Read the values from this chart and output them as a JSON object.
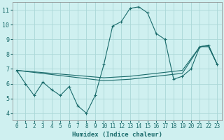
{
  "xlabel": "Humidex (Indice chaleur)",
  "bg_color": "#cff0f0",
  "grid_color": "#aad8d8",
  "line_color": "#1a6b6b",
  "xlim": [
    -0.5,
    23.5
  ],
  "ylim": [
    3.5,
    11.5
  ],
  "xticks": [
    0,
    1,
    2,
    3,
    4,
    5,
    6,
    7,
    8,
    9,
    10,
    11,
    12,
    13,
    14,
    15,
    16,
    17,
    18,
    19,
    20,
    21,
    22,
    23
  ],
  "yticks": [
    4,
    5,
    6,
    7,
    8,
    9,
    10,
    11
  ],
  "series_main": [
    [
      0,
      6.9
    ],
    [
      1,
      6.0
    ],
    [
      2,
      5.2
    ],
    [
      3,
      6.1
    ],
    [
      4,
      5.6
    ],
    [
      5,
      5.2
    ],
    [
      6,
      5.8
    ],
    [
      7,
      4.5
    ],
    [
      8,
      4.0
    ],
    [
      9,
      5.2
    ],
    [
      10,
      7.3
    ],
    [
      11,
      9.9
    ],
    [
      12,
      10.2
    ],
    [
      13,
      11.1
    ],
    [
      14,
      11.2
    ],
    [
      15,
      10.8
    ],
    [
      16,
      9.4
    ],
    [
      17,
      9.0
    ],
    [
      18,
      6.3
    ],
    [
      19,
      6.5
    ],
    [
      20,
      7.0
    ],
    [
      21,
      8.5
    ],
    [
      22,
      8.6
    ],
    [
      23,
      7.3
    ]
  ],
  "series2": [
    [
      0,
      6.9
    ],
    [
      10,
      6.4
    ],
    [
      13,
      6.5
    ],
    [
      19,
      6.9
    ],
    [
      21,
      8.5
    ],
    [
      22,
      8.6
    ],
    [
      23,
      7.3
    ]
  ],
  "series3": [
    [
      0,
      6.9
    ],
    [
      10,
      6.2
    ],
    [
      13,
      6.3
    ],
    [
      19,
      6.7
    ],
    [
      21,
      8.5
    ],
    [
      22,
      8.5
    ],
    [
      23,
      7.3
    ]
  ]
}
